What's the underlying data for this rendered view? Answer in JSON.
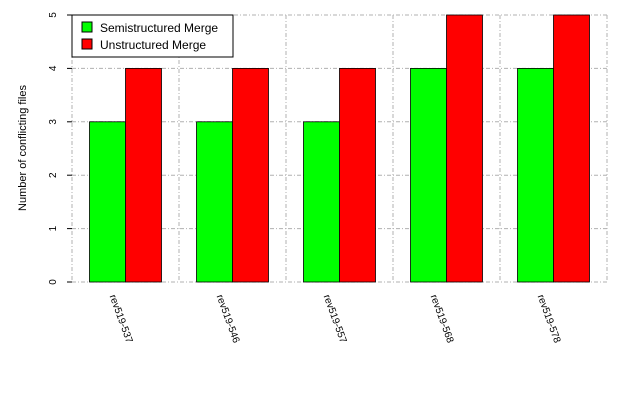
{
  "chart_data": {
    "type": "bar",
    "ylabel": "Number of conflicting files",
    "xlabel": "",
    "ylim": [
      0,
      5
    ],
    "yticks": [
      0,
      1,
      2,
      3,
      4,
      5
    ],
    "grid": true,
    "legend_position": "top-left",
    "categories": [
      "rev519-537",
      "rev519-546",
      "rev519-557",
      "rev519-568",
      "rev519-578"
    ],
    "series": [
      {
        "name": "Semistructured Merge",
        "color": "#00ff00",
        "values": [
          3,
          3,
          3,
          4,
          4
        ]
      },
      {
        "name": "Unstructured Merge",
        "color": "#ff0000",
        "values": [
          4,
          4,
          4,
          5,
          5
        ]
      }
    ]
  }
}
